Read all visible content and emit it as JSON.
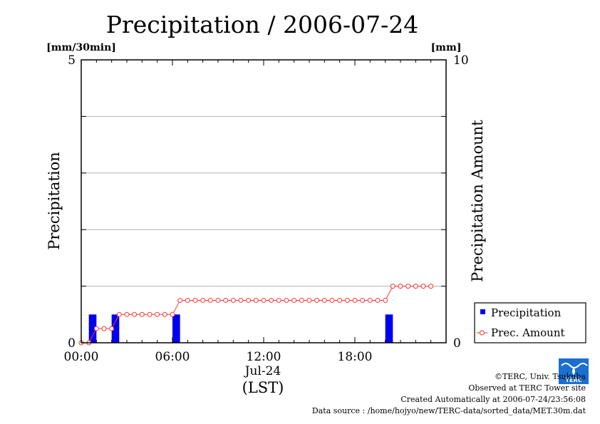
{
  "chart_data": {
    "type": "bar",
    "title": "Precipitation / 2006-07-24",
    "left_unit": "[mm/30min]",
    "right_unit": "[mm]",
    "ylabel": "Precipitation",
    "y2label": "Precipitation Amount",
    "ylim": [
      0,
      5
    ],
    "y2lim": [
      0,
      10
    ],
    "yticks": [
      "0",
      "5"
    ],
    "y2ticks": [
      "0",
      "10"
    ],
    "xlim": [
      0,
      24
    ],
    "xticks": [
      {
        "t": 0,
        "label": "00:00"
      },
      {
        "t": 6,
        "label": "06:00"
      },
      {
        "t": 12,
        "label": "12:00"
      },
      {
        "t": 18,
        "label": "18:00"
      }
    ],
    "xdate": "Jul-24",
    "xlabel": "(LST)",
    "grid": true,
    "legend_position": "bottom-right",
    "series": [
      {
        "name": "Precipitation",
        "kind": "bar",
        "color": "#0000ee",
        "times": [
          0.5,
          2.0,
          6.0,
          20.0
        ],
        "values": [
          0.5,
          0.5,
          0.5,
          0.5
        ]
      },
      {
        "name": "Prec. Amount",
        "kind": "line",
        "color": "#ff3333",
        "times": [
          0,
          0.5,
          1.0,
          1.5,
          2.0,
          2.5,
          3.0,
          3.5,
          4.0,
          4.5,
          5.0,
          5.5,
          6.0,
          6.5,
          7.0,
          7.5,
          8.0,
          8.5,
          9.0,
          9.5,
          10.0,
          10.5,
          11.0,
          11.5,
          12.0,
          12.5,
          13.0,
          13.5,
          14.0,
          14.5,
          15.0,
          15.5,
          16.0,
          16.5,
          17.0,
          17.5,
          18.0,
          18.5,
          19.0,
          19.5,
          20.0,
          20.5,
          21.0,
          21.5,
          22.0,
          22.5,
          23.0
        ],
        "values": [
          0,
          0,
          0.5,
          0.5,
          0.5,
          1.0,
          1.0,
          1.0,
          1.0,
          1.0,
          1.0,
          1.0,
          1.0,
          1.5,
          1.5,
          1.5,
          1.5,
          1.5,
          1.5,
          1.5,
          1.5,
          1.5,
          1.5,
          1.5,
          1.5,
          1.5,
          1.5,
          1.5,
          1.5,
          1.5,
          1.5,
          1.5,
          1.5,
          1.5,
          1.5,
          1.5,
          1.5,
          1.5,
          1.5,
          1.5,
          1.5,
          2.0,
          2.0,
          2.0,
          2.0,
          2.0,
          2.0
        ]
      }
    ]
  },
  "credits": {
    "line1": "©TERC, Univ. Tsukuba",
    "line2": "Observed at TERC Tower site",
    "line3": "Created Automatically at 2006-07-24/23:56:08",
    "line4": "Data source : /home/hojyo/new/TERC-data/sorted_data/MET.30m.dat"
  },
  "logo": {
    "text": "TERC",
    "color": "#1a6fd0"
  }
}
